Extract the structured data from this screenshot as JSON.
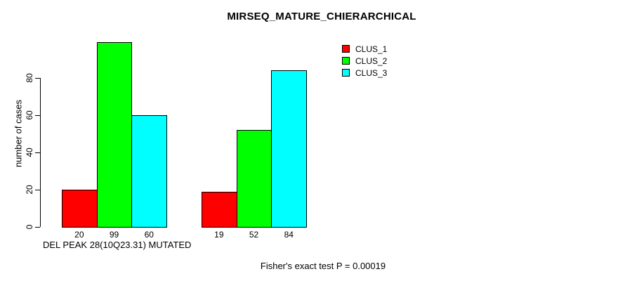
{
  "chart_data": {
    "type": "bar",
    "title": "MIRSEQ_MATURE_CHIERARCHICAL",
    "ylabel": "number of cases",
    "xlabel": "DEL PEAK 28(10Q23.31) MUTATED",
    "ylim": [
      0,
      104
    ],
    "yticks": [
      0,
      20,
      40,
      60,
      80
    ],
    "categories": [
      "DEL PEAK 28(10Q23.31) MUTATED",
      ""
    ],
    "series": [
      {
        "name": "CLUS_1",
        "color": "#ff0000",
        "values": [
          20,
          19
        ]
      },
      {
        "name": "CLUS_2",
        "color": "#00ff00",
        "values": [
          99,
          52
        ]
      },
      {
        "name": "CLUS_3",
        "color": "#00ffff",
        "values": [
          60,
          84
        ]
      }
    ],
    "bar_value_labels": [
      [
        "20",
        "99",
        "60"
      ],
      [
        "19",
        "52",
        "84"
      ]
    ],
    "legend": {
      "position": "top-right",
      "entries": [
        {
          "label": "CLUS_1",
          "color": "#ff0000"
        },
        {
          "label": "CLUS_2",
          "color": "#00ff00"
        },
        {
          "label": "CLUS_3",
          "color": "#00ffff"
        }
      ]
    },
    "annotation": "Fisher's exact test P = 0.00019",
    "grid": false,
    "axis_color": "#000000",
    "background_color": "#ffffff"
  }
}
